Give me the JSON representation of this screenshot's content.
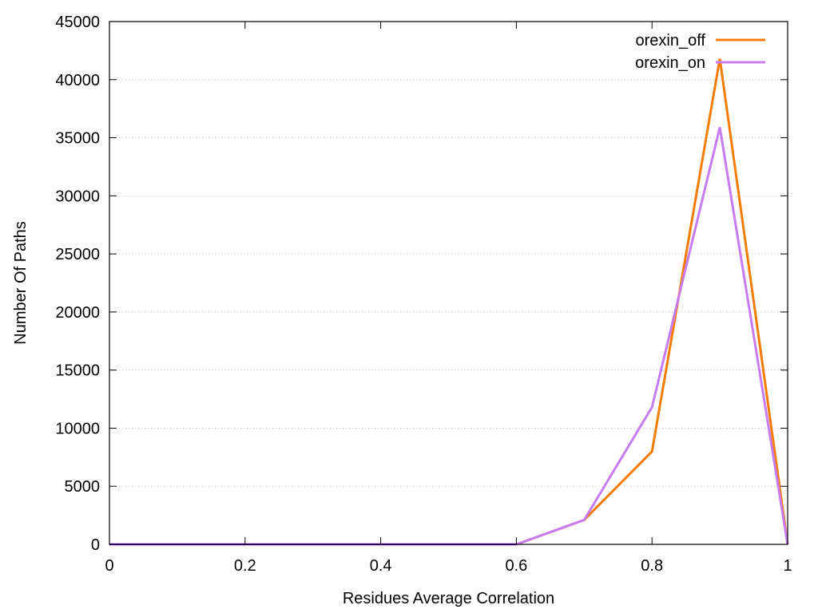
{
  "chart_data": {
    "type": "line",
    "xlabel": "Residues Average Correlation",
    "ylabel": "Number Of Paths",
    "xlim": [
      0,
      1
    ],
    "ylim": [
      0,
      45000
    ],
    "x_ticks": [
      "0",
      "0.2",
      "0.4",
      "0.6",
      "0.8",
      "1"
    ],
    "y_ticks": [
      "0",
      "5000",
      "10000",
      "15000",
      "20000",
      "25000",
      "30000",
      "35000",
      "40000",
      "45000"
    ],
    "grid": "dotted horizontal",
    "legend_position": "top-right",
    "x": [
      0,
      0.1,
      0.2,
      0.3,
      0.4,
      0.5,
      0.6,
      0.7,
      0.8,
      0.9,
      1.0
    ],
    "series": [
      {
        "name": "orexin_off",
        "color": "#f57c00",
        "values": [
          0,
          0,
          0,
          0,
          0,
          0,
          0,
          2100,
          8000,
          41800,
          0
        ]
      },
      {
        "name": "orexin_on",
        "color": "#c77cf2",
        "values": [
          0,
          0,
          0,
          0,
          0,
          0,
          0,
          2100,
          11800,
          35900,
          0
        ]
      }
    ]
  }
}
